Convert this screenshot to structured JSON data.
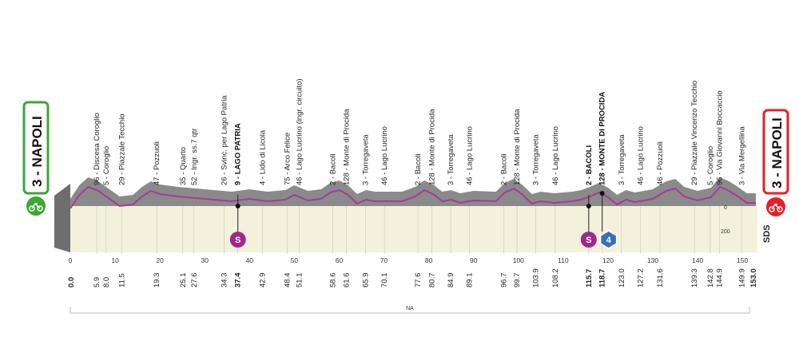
{
  "start_town": {
    "km": "3",
    "name": "NAPOLI",
    "label": "3 - NAPOLI",
    "color": "#3fa535"
  },
  "finish_town": {
    "km": "3",
    "name": "NAPOLI",
    "label": "3 - NAPOLI",
    "color": "#e4202a"
  },
  "total_km": 153.0,
  "logo_text": "SDS",
  "footer_label": "NA",
  "altitude_labels": [
    "0",
    "200"
  ],
  "colors": {
    "profile_gray": "#8a8a8a",
    "profile_line": "#a83a93",
    "valley": "#f0f0d8",
    "sprint": "#a0288c",
    "kom": "#3a6fb5"
  },
  "waypoints": [
    {
      "km": 5.9,
      "dist": "5.9",
      "label": "96 - Discesa Coroglio",
      "bold": false
    },
    {
      "km": 8.0,
      "dist": "8.0",
      "label": "5 - Coroglio",
      "bold": false
    },
    {
      "km": 11.5,
      "dist": "11.5",
      "label": "29 - Piazzale Tecchio",
      "bold": false
    },
    {
      "km": 19.3,
      "dist": "19.3",
      "label": "47 - Pozzuoli",
      "bold": false
    },
    {
      "km": 25.1,
      "dist": "25.1",
      "label": "35 - Quarto",
      "bold": false
    },
    {
      "km": 27.6,
      "dist": "27.6",
      "label": "52 - Ingr. ss.7 qtr",
      "bold": false
    },
    {
      "km": 34.3,
      "dist": "34.3",
      "label": "26 - Svinc. per Lago Patria",
      "bold": false
    },
    {
      "km": 37.4,
      "dist": "37.4",
      "label": "9 - LAGO PATRIA",
      "bold": true
    },
    {
      "km": 42.9,
      "dist": "42.9",
      "label": "4 - Lido di Licola",
      "bold": false
    },
    {
      "km": 48.4,
      "dist": "48.4",
      "label": "75 - Arco Felice",
      "bold": false
    },
    {
      "km": 51.1,
      "dist": "51.1",
      "label": "46 - Lago Lucrino (ingr. circuito)",
      "bold": false
    },
    {
      "km": 58.6,
      "dist": "58.6",
      "label": "2 - Bacoli",
      "bold": false
    },
    {
      "km": 61.6,
      "dist": "61.6",
      "label": "128 - Monte di Procida",
      "bold": false
    },
    {
      "km": 65.9,
      "dist": "65.9",
      "label": "3 - Torregaveta",
      "bold": false
    },
    {
      "km": 70.1,
      "dist": "70.1",
      "label": "46 - Lago Lucrino",
      "bold": false
    },
    {
      "km": 77.6,
      "dist": "77.6",
      "label": "2 - Bacoli",
      "bold": false
    },
    {
      "km": 80.7,
      "dist": "80.7",
      "label": "128 - Monte di Procida",
      "bold": false
    },
    {
      "km": 84.9,
      "dist": "84.9",
      "label": "3 - Torregaveta",
      "bold": false
    },
    {
      "km": 89.1,
      "dist": "89.1",
      "label": "46 - Lago Lucrino",
      "bold": false
    },
    {
      "km": 96.7,
      "dist": "96.7",
      "label": "2 - Bacoli",
      "bold": false
    },
    {
      "km": 99.7,
      "dist": "99.7",
      "label": "128 - Monte di Procida",
      "bold": false
    },
    {
      "km": 103.9,
      "dist": "103.9",
      "label": "3 - Torregaveta",
      "bold": false
    },
    {
      "km": 108.2,
      "dist": "108.2",
      "label": "46 - Lago Lucrino",
      "bold": false
    },
    {
      "km": 115.7,
      "dist": "115.7",
      "label": "2 - BACOLI",
      "bold": true
    },
    {
      "km": 118.7,
      "dist": "118.7",
      "label": "128 - MONTE DI PROCIDA",
      "bold": true
    },
    {
      "km": 123.0,
      "dist": "123.0",
      "label": "3 - Torregaveta",
      "bold": false
    },
    {
      "km": 127.2,
      "dist": "127.2",
      "label": "46 - Lago Lucrino",
      "bold": false
    },
    {
      "km": 131.6,
      "dist": "131.6",
      "label": "46 - Pozzuoli",
      "bold": false
    },
    {
      "km": 139.3,
      "dist": "139.3",
      "label": "29 - Piazzale Vincenzo Tecchio",
      "bold": false
    },
    {
      "km": 142.8,
      "dist": "142.8",
      "label": "5 - Coroglio",
      "bold": false
    },
    {
      "km": 144.9,
      "dist": "144.9",
      "label": "96 - Via Giovanni Boccaccio",
      "bold": false
    },
    {
      "km": 149.9,
      "dist": "149.9",
      "label": "3 - Via Mergellina",
      "bold": false
    }
  ],
  "axis_ticks": [
    "0",
    "10",
    "20",
    "30",
    "40",
    "50",
    "60",
    "70",
    "80",
    "90",
    "100",
    "110",
    "120",
    "130",
    "140",
    "150"
  ],
  "start_dist": "0.0",
  "end_dist": "153.0",
  "markers": [
    {
      "type": "sprint",
      "km": 37.4,
      "text": "S"
    },
    {
      "type": "sprint",
      "km": 115.7,
      "text": "S"
    },
    {
      "type": "kom",
      "km": 118.7,
      "text": "4"
    }
  ]
}
